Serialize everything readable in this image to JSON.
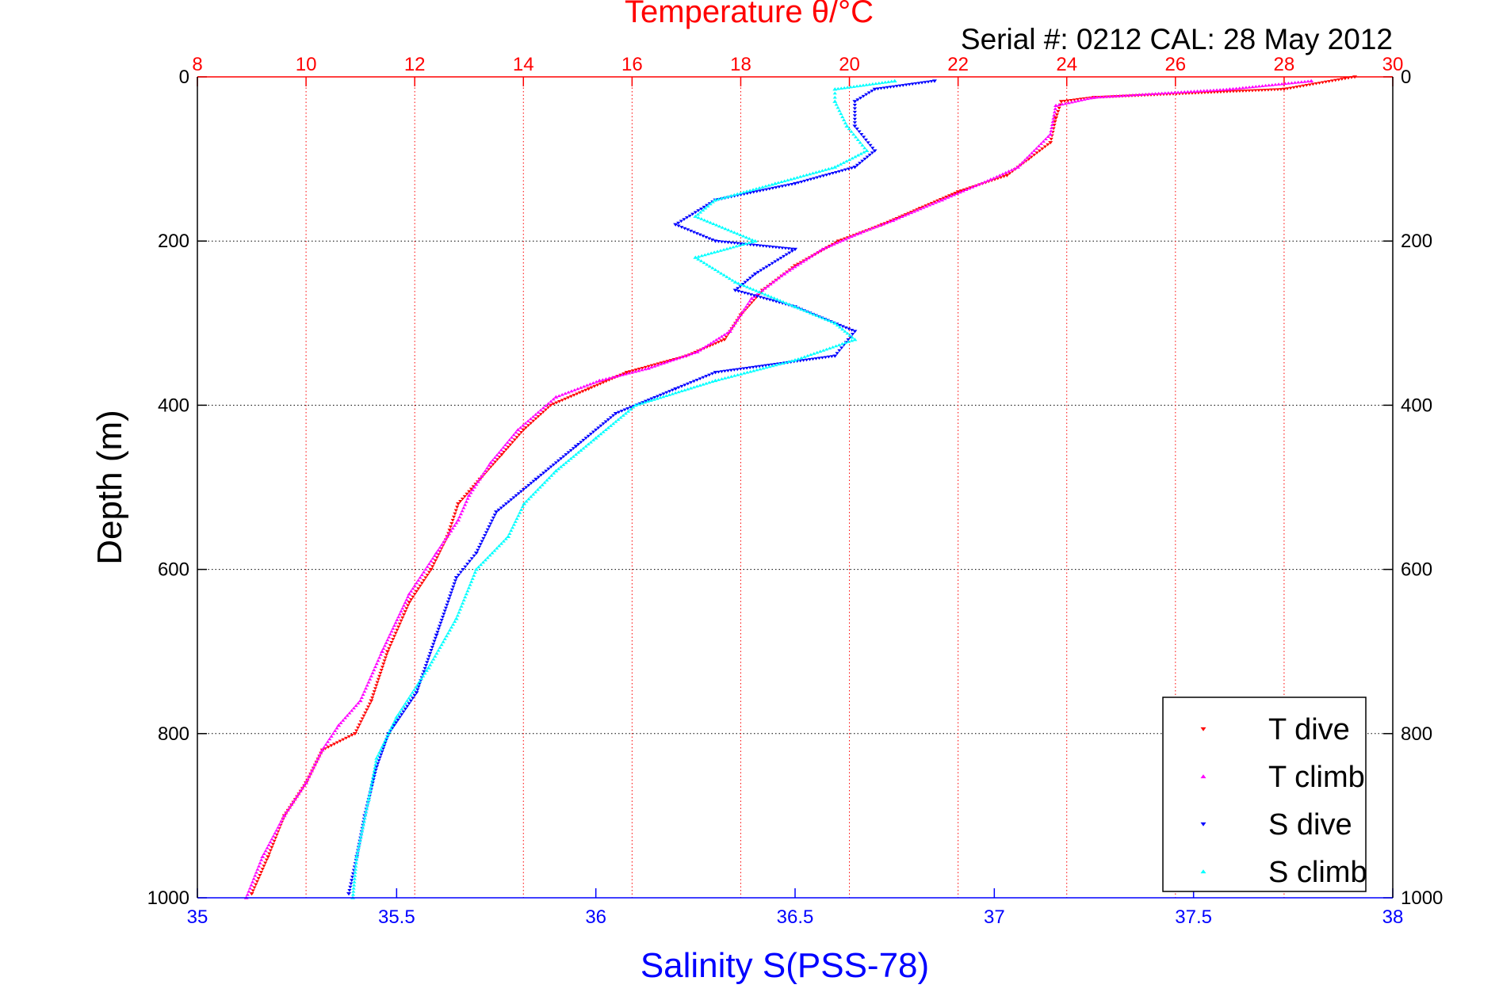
{
  "header": {
    "top_title": "Temperature θ/°C",
    "serial_label": "Serial #: 0212  CAL: 28 May 2012"
  },
  "chart_data": {
    "type": "scatter",
    "title": "Temperature θ/°C",
    "annotation": "Serial #: 0212  CAL: 28 May 2012",
    "ylabel": "Depth (m)",
    "xlabel_bottom": "Salinity S(PSS-78)",
    "xlabel_top": "Temperature θ/°C",
    "y_axis": {
      "range": [
        0,
        1000
      ],
      "reversed": true,
      "ticks": [
        0,
        200,
        400,
        600,
        800,
        1000
      ],
      "grid": true,
      "grid_style": "dotted"
    },
    "x_bottom_axis": {
      "quantity": "salinity",
      "range": [
        35,
        38
      ],
      "ticks": [
        35,
        35.5,
        36,
        36.5,
        37,
        37.5,
        38
      ],
      "tick_labels": [
        "35",
        "35.5",
        "36",
        "36.5",
        "37",
        "37.5",
        "38"
      ],
      "color": "#0000ff"
    },
    "x_top_axis": {
      "quantity": "temperature",
      "range": [
        8,
        30
      ],
      "ticks": [
        8,
        10,
        12,
        14,
        16,
        18,
        20,
        22,
        24,
        26,
        28,
        30
      ],
      "tick_labels": [
        "8",
        "10",
        "12",
        "14",
        "16",
        "18",
        "20",
        "22",
        "24",
        "26",
        "28",
        "30"
      ],
      "color": "#ff0000",
      "grid": true,
      "grid_style": "dotted"
    },
    "legend_position": "bottom-right",
    "series": [
      {
        "name": "T dive",
        "axis": "temperature",
        "color": "#ff0000",
        "marker": "triangle-down",
        "points": [
          [
            29.3,
            0
          ],
          [
            28.0,
            15
          ],
          [
            24.5,
            25
          ],
          [
            23.9,
            30
          ],
          [
            23.8,
            50
          ],
          [
            23.7,
            80
          ],
          [
            23.3,
            100
          ],
          [
            22.9,
            120
          ],
          [
            22.0,
            140
          ],
          [
            21.3,
            160
          ],
          [
            20.6,
            180
          ],
          [
            19.8,
            200
          ],
          [
            19.0,
            230
          ],
          [
            18.4,
            260
          ],
          [
            18.0,
            290
          ],
          [
            17.7,
            320
          ],
          [
            17.0,
            340
          ],
          [
            15.9,
            360
          ],
          [
            15.2,
            380
          ],
          [
            14.5,
            400
          ],
          [
            14.0,
            430
          ],
          [
            13.6,
            460
          ],
          [
            13.2,
            490
          ],
          [
            12.8,
            520
          ],
          [
            12.6,
            560
          ],
          [
            12.3,
            600
          ],
          [
            11.9,
            640
          ],
          [
            11.5,
            700
          ],
          [
            11.2,
            760
          ],
          [
            10.9,
            800
          ],
          [
            10.3,
            820
          ],
          [
            10.0,
            860
          ],
          [
            9.6,
            900
          ],
          [
            9.3,
            950
          ],
          [
            9.0,
            995
          ]
        ]
      },
      {
        "name": "T climb",
        "axis": "temperature",
        "color": "#ff00ff",
        "marker": "triangle-up",
        "points": [
          [
            28.5,
            5
          ],
          [
            27.0,
            15
          ],
          [
            24.5,
            25
          ],
          [
            23.8,
            35
          ],
          [
            23.7,
            70
          ],
          [
            23.1,
            110
          ],
          [
            22.6,
            125
          ],
          [
            21.7,
            150
          ],
          [
            20.8,
            175
          ],
          [
            20.2,
            190
          ],
          [
            19.5,
            210
          ],
          [
            18.8,
            240
          ],
          [
            18.2,
            270
          ],
          [
            17.8,
            310
          ],
          [
            17.2,
            335
          ],
          [
            16.3,
            355
          ],
          [
            15.4,
            370
          ],
          [
            14.6,
            390
          ],
          [
            13.9,
            430
          ],
          [
            13.4,
            470
          ],
          [
            13.0,
            510
          ],
          [
            12.8,
            540
          ],
          [
            12.4,
            580
          ],
          [
            11.9,
            630
          ],
          [
            11.4,
            700
          ],
          [
            11.0,
            760
          ],
          [
            10.6,
            790
          ],
          [
            10.3,
            820
          ],
          [
            10.0,
            860
          ],
          [
            9.6,
            900
          ],
          [
            9.2,
            950
          ],
          [
            8.9,
            1000
          ]
        ]
      },
      {
        "name": "S dive",
        "axis": "salinity",
        "color": "#0000ff",
        "marker": "triangle-down",
        "points": [
          [
            36.85,
            5
          ],
          [
            36.7,
            15
          ],
          [
            36.65,
            30
          ],
          [
            36.65,
            60
          ],
          [
            36.7,
            90
          ],
          [
            36.65,
            110
          ],
          [
            36.5,
            130
          ],
          [
            36.3,
            150
          ],
          [
            36.2,
            180
          ],
          [
            36.3,
            200
          ],
          [
            36.5,
            210
          ],
          [
            36.4,
            240
          ],
          [
            36.35,
            260
          ],
          [
            36.5,
            280
          ],
          [
            36.65,
            310
          ],
          [
            36.6,
            340
          ],
          [
            36.3,
            360
          ],
          [
            36.2,
            380
          ],
          [
            36.05,
            410
          ],
          [
            35.95,
            450
          ],
          [
            35.85,
            490
          ],
          [
            35.75,
            530
          ],
          [
            35.7,
            580
          ],
          [
            35.65,
            610
          ],
          [
            35.6,
            680
          ],
          [
            35.55,
            750
          ],
          [
            35.48,
            800
          ],
          [
            35.45,
            840
          ],
          [
            35.42,
            900
          ],
          [
            35.4,
            950
          ],
          [
            35.38,
            995
          ]
        ]
      },
      {
        "name": "S climb",
        "axis": "salinity",
        "color": "#00ffff",
        "marker": "triangle-up",
        "points": [
          [
            36.75,
            5
          ],
          [
            36.6,
            15
          ],
          [
            36.6,
            30
          ],
          [
            36.63,
            60
          ],
          [
            36.68,
            90
          ],
          [
            36.6,
            110
          ],
          [
            36.45,
            130
          ],
          [
            36.3,
            150
          ],
          [
            36.25,
            170
          ],
          [
            36.4,
            200
          ],
          [
            36.25,
            220
          ],
          [
            36.35,
            250
          ],
          [
            36.5,
            280
          ],
          [
            36.6,
            300
          ],
          [
            36.65,
            320
          ],
          [
            36.5,
            345
          ],
          [
            36.3,
            370
          ],
          [
            36.1,
            400
          ],
          [
            36.0,
            440
          ],
          [
            35.9,
            480
          ],
          [
            35.82,
            520
          ],
          [
            35.78,
            560
          ],
          [
            35.7,
            600
          ],
          [
            35.65,
            660
          ],
          [
            35.58,
            720
          ],
          [
            35.5,
            780
          ],
          [
            35.45,
            830
          ],
          [
            35.43,
            880
          ],
          [
            35.4,
            950
          ],
          [
            35.39,
            1000
          ]
        ]
      }
    ]
  }
}
